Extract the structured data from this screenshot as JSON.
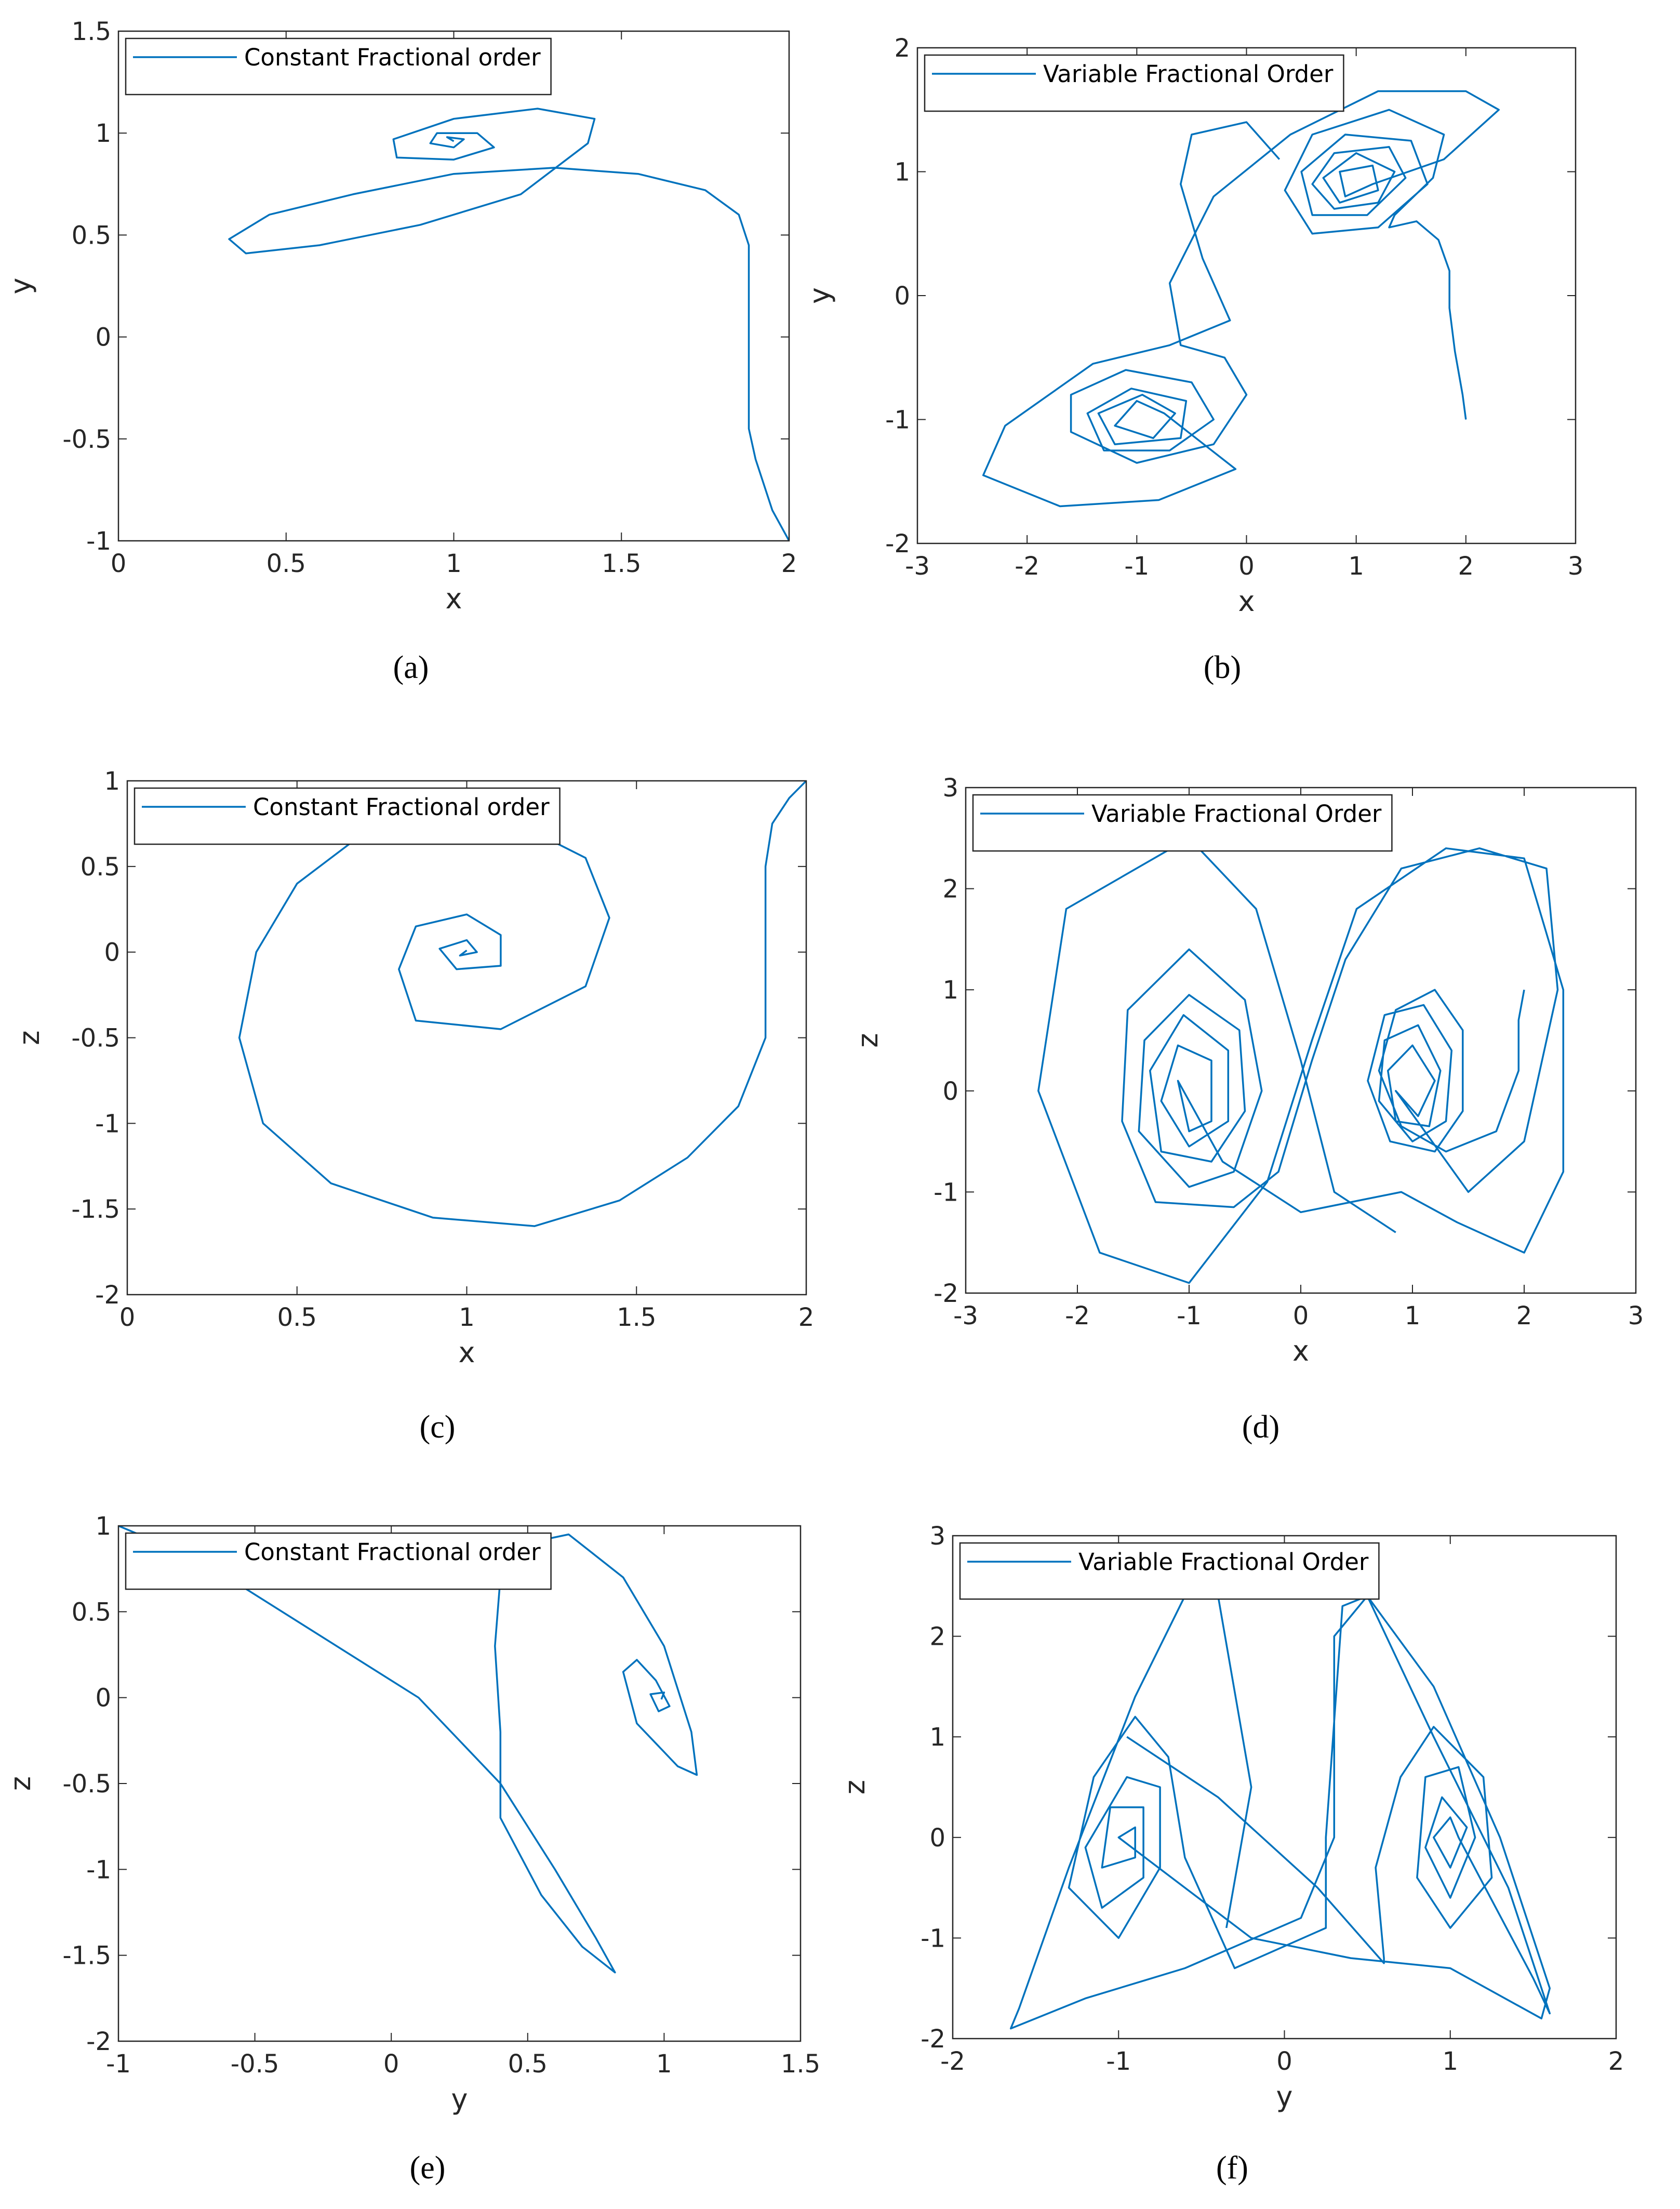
{
  "chart_data": [
    {
      "type": "line",
      "caption": "(a)",
      "xlabel": "x",
      "ylabel": "y",
      "legend": "upper left",
      "xlim": [
        0,
        2
      ],
      "ylim": [
        -1,
        1.5
      ],
      "xticks": [
        0,
        0.5,
        1,
        1.5,
        2
      ],
      "yticks": [
        -1,
        -0.5,
        0,
        0.5,
        1,
        1.5
      ],
      "series": [
        {
          "name": "Constant Fractional order",
          "color": "#0072bd",
          "x": [
            2,
            1.95,
            1.9,
            1.88,
            1.88,
            1.88,
            1.85,
            1.75,
            1.55,
            1.3,
            1.0,
            0.7,
            0.45,
            0.33,
            0.38,
            0.6,
            0.9,
            1.2,
            1.4,
            1.42,
            1.25,
            1.0,
            0.82,
            0.83,
            1.0,
            1.12,
            1.07,
            0.95,
            0.93,
            1.0,
            1.03,
            0.98,
            1.0
          ],
          "values": [
            -1,
            -0.85,
            -0.6,
            -0.45,
            0,
            0.45,
            0.6,
            0.72,
            0.8,
            0.83,
            0.8,
            0.7,
            0.6,
            0.48,
            0.41,
            0.45,
            0.55,
            0.7,
            0.95,
            1.07,
            1.12,
            1.07,
            0.97,
            0.88,
            0.87,
            0.93,
            1.0,
            1.0,
            0.95,
            0.93,
            0.97,
            0.98,
            0.96
          ]
        }
      ]
    },
    {
      "type": "line",
      "caption": "(b)",
      "xlabel": "x",
      "ylabel": "y",
      "legend": "upper left",
      "xlim": [
        -3,
        3
      ],
      "ylim": [
        -2,
        2
      ],
      "xticks": [
        -3,
        -2,
        -1,
        0,
        1,
        2,
        3
      ],
      "yticks": [
        -2,
        -1,
        0,
        1,
        2
      ],
      "series": [
        {
          "name": "Variable Fractional Order",
          "color": "#0072bd",
          "x": [
            2,
            1.97,
            1.9,
            1.85,
            1.85,
            1.75,
            1.55,
            1.3,
            1.35,
            1.7,
            1.8,
            1.3,
            0.6,
            0.35,
            0.6,
            1.2,
            1.65,
            1.5,
            0.9,
            0.5,
            0.6,
            1.1,
            1.45,
            1.3,
            0.8,
            0.6,
            0.8,
            1.2,
            1.35,
            1.0,
            0.7,
            0.85,
            1.2,
            1.15,
            0.85,
            0.9,
            1.15,
            1.8,
            2.3,
            2.0,
            1.2,
            0.4,
            -0.3,
            -0.7,
            -0.6,
            -0.2,
            0,
            -0.3,
            -1.0,
            -1.6,
            -1.6,
            -1.1,
            -0.5,
            -0.3,
            -0.7,
            -1.3,
            -1.45,
            -1.05,
            -0.55,
            -0.6,
            -1.2,
            -1.35,
            -0.95,
            -0.65,
            -0.85,
            -1.2,
            -1.0,
            -0.75,
            -0.1,
            -0.8,
            -1.7,
            -2.4,
            -2.2,
            -1.4,
            -0.7,
            -0.15,
            -0.4,
            -0.6,
            -0.5,
            0.0,
            0.3
          ],
          "values": [
            -1,
            -0.8,
            -0.45,
            -0.1,
            0.2,
            0.45,
            0.6,
            0.55,
            0.65,
            0.95,
            1.3,
            1.5,
            1.3,
            0.85,
            0.5,
            0.55,
            0.9,
            1.25,
            1.3,
            1.0,
            0.65,
            0.65,
            0.95,
            1.2,
            1.15,
            0.9,
            0.7,
            0.75,
            1.0,
            1.15,
            0.95,
            0.75,
            0.85,
            1.05,
            1.0,
            0.8,
            0.9,
            1.1,
            1.5,
            1.65,
            1.65,
            1.3,
            0.8,
            0.1,
            -0.4,
            -0.5,
            -0.8,
            -1.2,
            -1.35,
            -1.1,
            -0.8,
            -0.6,
            -0.7,
            -1.0,
            -1.25,
            -1.25,
            -0.95,
            -0.75,
            -0.85,
            -1.15,
            -1.2,
            -0.95,
            -0.8,
            -0.95,
            -1.15,
            -1.05,
            -0.85,
            -0.95,
            -1.4,
            -1.65,
            -1.7,
            -1.45,
            -1.05,
            -0.55,
            -0.4,
            -0.2,
            0.3,
            0.9,
            1.3,
            1.4,
            1.1
          ]
        }
      ]
    },
    {
      "type": "line",
      "caption": "(c)",
      "xlabel": "x",
      "ylabel": "z",
      "legend": "upper left",
      "xlim": [
        0,
        2
      ],
      "ylim": [
        -2,
        1
      ],
      "xticks": [
        0,
        0.5,
        1,
        1.5,
        2
      ],
      "yticks": [
        -2,
        -1.5,
        -1,
        -0.5,
        0,
        0.5,
        1
      ],
      "series": [
        {
          "name": "Constant Fractional order",
          "color": "#0072bd",
          "x": [
            2,
            1.95,
            1.9,
            1.88,
            1.88,
            1.88,
            1.8,
            1.65,
            1.45,
            1.2,
            0.9,
            0.6,
            0.4,
            0.33,
            0.38,
            0.5,
            0.7,
            0.9,
            1.15,
            1.35,
            1.42,
            1.35,
            1.1,
            0.85,
            0.8,
            0.85,
            1.0,
            1.1,
            1.1,
            0.97,
            0.92,
            1.0,
            1.03,
            0.98,
            1.0
          ],
          "values": [
            1,
            0.9,
            0.75,
            0.5,
            0,
            -0.5,
            -0.9,
            -1.2,
            -1.45,
            -1.6,
            -1.55,
            -1.35,
            -1.0,
            -0.5,
            0,
            0.4,
            0.7,
            0.8,
            0.75,
            0.55,
            0.2,
            -0.2,
            -0.45,
            -0.4,
            -0.1,
            0.15,
            0.22,
            0.1,
            -0.08,
            -0.1,
            0.02,
            0.07,
            0.0,
            -0.02,
            0.01
          ]
        }
      ]
    },
    {
      "type": "line",
      "caption": "(d)",
      "xlabel": "x",
      "ylabel": "z",
      "legend": "upper left",
      "xlim": [
        -3,
        3
      ],
      "ylim": [
        -2,
        3
      ],
      "xticks": [
        -3,
        -2,
        -1,
        0,
        1,
        2,
        3
      ],
      "yticks": [
        -2,
        -1,
        0,
        1,
        2,
        3
      ],
      "series": [
        {
          "name": "Variable Fractional Order",
          "color": "#0072bd",
          "x": [
            2,
            1.95,
            1.95,
            1.75,
            1.3,
            0.9,
            0.7,
            0.85,
            1.2,
            1.45,
            1.45,
            1.2,
            0.8,
            0.6,
            0.75,
            1.1,
            1.35,
            1.3,
            1.0,
            0.7,
            0.75,
            1.05,
            1.25,
            1.15,
            0.85,
            0.78,
            1.0,
            1.2,
            1.05,
            0.85,
            1.5,
            2.0,
            2.3,
            2.2,
            1.6,
            0.9,
            0.4,
            0.1,
            -0.2,
            -0.6,
            -1.3,
            -1.6,
            -1.55,
            -1.0,
            -0.5,
            -0.35,
            -0.6,
            -1.0,
            -1.45,
            -1.4,
            -1.0,
            -0.55,
            -0.5,
            -0.8,
            -1.25,
            -1.35,
            -1.05,
            -0.65,
            -0.65,
            -1.0,
            -1.25,
            -1.1,
            -0.8,
            -0.8,
            -1.0,
            -1.1,
            -0.7,
            0,
            0.9,
            1.4,
            2.0,
            2.35,
            2.35,
            2.0,
            1.3,
            0.5,
            0.1,
            -0.3,
            -1.0,
            -1.8,
            -2.35,
            -2.1,
            -1.0,
            -0.4,
            0.0,
            0.3,
            0.85
          ],
          "values": [
            1,
            0.7,
            0.2,
            -0.4,
            -0.6,
            -0.35,
            0.2,
            0.8,
            1.0,
            0.6,
            -0.2,
            -0.6,
            -0.5,
            0.1,
            0.75,
            0.85,
            0.4,
            -0.3,
            -0.5,
            -0.1,
            0.5,
            0.65,
            0.2,
            -0.35,
            -0.3,
            0.2,
            0.45,
            0.1,
            -0.25,
            0,
            -1.0,
            -0.5,
            1.0,
            2.2,
            2.4,
            2.2,
            1.3,
            0.3,
            -0.8,
            -1.15,
            -1.1,
            -0.3,
            0.8,
            1.4,
            0.9,
            0,
            -0.8,
            -0.95,
            -0.4,
            0.5,
            0.95,
            0.6,
            -0.2,
            -0.7,
            -0.6,
            0.2,
            0.75,
            0.4,
            -0.3,
            -0.55,
            -0.1,
            0.45,
            0.3,
            -0.3,
            -0.4,
            0.1,
            -0.7,
            -1.2,
            -1.0,
            -1.3,
            -1.6,
            -0.8,
            1.0,
            2.3,
            2.4,
            1.8,
            0.5,
            -0.9,
            -1.9,
            -1.6,
            0,
            1.8,
            2.5,
            1.8,
            0.3,
            -1.0,
            -1.4
          ]
        }
      ]
    },
    {
      "type": "line",
      "caption": "(e)",
      "xlabel": "y",
      "ylabel": "z",
      "legend": "upper left",
      "xlim": [
        -1,
        1.5
      ],
      "ylim": [
        -2,
        1
      ],
      "xticks": [
        -1,
        -0.5,
        0,
        0.5,
        1,
        1.5
      ],
      "yticks": [
        -2,
        -1.5,
        -1,
        -0.5,
        0,
        0.5,
        1
      ],
      "series": [
        {
          "name": "Constant Fractional order",
          "color": "#0072bd",
          "x": [
            -1,
            -0.7,
            -0.3,
            0.1,
            0.4,
            0.6,
            0.75,
            0.82,
            0.7,
            0.55,
            0.4,
            0.4,
            0.38,
            0.4,
            0.5,
            0.65,
            0.85,
            1.0,
            1.1,
            1.12,
            1.05,
            0.9,
            0.85,
            0.9,
            0.97,
            1.02,
            0.98,
            0.95,
            1.0,
            0.99
          ],
          "values": [
            1,
            0.8,
            0.4,
            0,
            -0.5,
            -1.0,
            -1.4,
            -1.6,
            -1.45,
            -1.15,
            -0.7,
            -0.2,
            0.3,
            0.7,
            0.9,
            0.95,
            0.7,
            0.3,
            -0.2,
            -0.45,
            -0.4,
            -0.15,
            0.15,
            0.22,
            0.1,
            -0.05,
            -0.08,
            0.02,
            0.03,
            -0.01
          ]
        }
      ]
    },
    {
      "type": "line",
      "caption": "(f)",
      "xlabel": "y",
      "ylabel": "z",
      "legend": "upper left",
      "xlim": [
        -2,
        2
      ],
      "ylim": [
        -2,
        3
      ],
      "xticks": [
        -2,
        -1,
        0,
        1,
        2
      ],
      "yticks": [
        -2,
        -1,
        0,
        1,
        2,
        3
      ],
      "series": [
        {
          "name": "Variable Fractional Order",
          "color": "#0072bd",
          "x": [
            -0.95,
            -0.4,
            0.2,
            0.6,
            0.6,
            0.55,
            0.7,
            0.9,
            1.2,
            1.25,
            1.0,
            0.8,
            0.85,
            1.05,
            1.15,
            1.0,
            0.85,
            0.95,
            1.1,
            1.0,
            0.9,
            1.0,
            1.05,
            1.5,
            1.6,
            1.35,
            0.9,
            0.5,
            0.35,
            0.25,
            0.25,
            -0.3,
            -0.6,
            -0.7,
            -0.9,
            -1.15,
            -1.3,
            -1.0,
            -0.75,
            -0.75,
            -0.95,
            -1.2,
            -1.1,
            -0.85,
            -0.85,
            -1.05,
            -1.1,
            -0.9,
            -0.9,
            -1.0,
            -0.2,
            0.4,
            1.0,
            1.55,
            1.6,
            1.3,
            0.9,
            0.5,
            0.3,
            0.3,
            0.1,
            -0.6,
            -1.2,
            -1.65,
            -1.6,
            -1.3,
            -0.9,
            -0.6,
            -0.4,
            -0.2,
            -0.35
          ],
          "values": [
            1.0,
            0.4,
            -0.5,
            -1.25,
            -1.2,
            -0.3,
            0.6,
            1.1,
            0.6,
            -0.4,
            -0.9,
            -0.4,
            0.6,
            0.7,
            0,
            -0.6,
            -0.1,
            0.4,
            0.1,
            -0.3,
            0.0,
            0.2,
            0,
            -1.4,
            -1.75,
            -0.5,
            1.0,
            2.4,
            2.3,
            0,
            -0.9,
            -1.3,
            -0.2,
            0.8,
            1.2,
            0.6,
            -0.5,
            -1.0,
            -0.3,
            0.5,
            0.6,
            -0.1,
            -0.7,
            -0.4,
            0.3,
            0.3,
            -0.3,
            -0.2,
            0.1,
            0,
            -1.0,
            -1.2,
            -1.3,
            -1.8,
            -1.5,
            0,
            1.5,
            2.4,
            2.0,
            0,
            -0.8,
            -1.3,
            -1.6,
            -1.9,
            -1.7,
            -0.3,
            1.4,
            2.4,
            2.4,
            0.5,
            -0.9
          ]
        }
      ]
    }
  ]
}
